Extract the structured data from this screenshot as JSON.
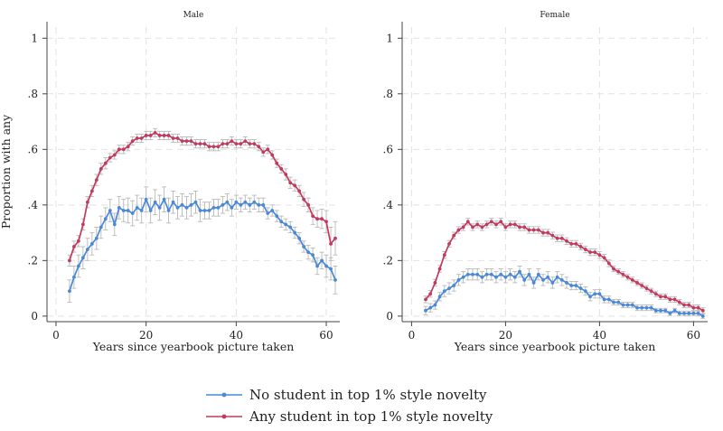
{
  "chart_data": {
    "type": "line",
    "ylabel": "Proportion with any",
    "xlabel": "Years since yearbook picture taken",
    "x_ticks": [
      0,
      20,
      40,
      60
    ],
    "y_ticks": [
      0,
      0.2,
      0.4,
      0.6,
      0.8,
      1
    ],
    "y_tick_labels": [
      "0",
      ".2",
      ".4",
      ".6",
      ".8",
      "1"
    ],
    "xlim": [
      -2,
      63
    ],
    "ylim": [
      -0.02,
      1.04
    ],
    "grid": true,
    "legend_position": "bottom",
    "error_bars": true,
    "series_styles": [
      {
        "name": "No student in top 1% style novelty",
        "color": "#4a88d8"
      },
      {
        "name": "Any student in top 1% style novelty",
        "color": "#c23a5e"
      }
    ],
    "panels": [
      {
        "title": "Male",
        "x": [
          3,
          4,
          5,
          6,
          7,
          8,
          9,
          10,
          11,
          12,
          13,
          14,
          15,
          16,
          17,
          18,
          19,
          20,
          21,
          22,
          23,
          24,
          25,
          26,
          27,
          28,
          29,
          30,
          31,
          32,
          33,
          34,
          35,
          36,
          37,
          38,
          39,
          40,
          41,
          42,
          43,
          44,
          45,
          46,
          47,
          48,
          49,
          50,
          51,
          52,
          53,
          54,
          55,
          56,
          57,
          58,
          59,
          60,
          61,
          62
        ],
        "series": [
          {
            "name": "No student in top 1% style novelty",
            "values": [
              0.09,
              0.14,
              0.18,
              0.21,
              0.24,
              0.26,
              0.28,
              0.32,
              0.35,
              0.38,
              0.33,
              0.39,
              0.38,
              0.38,
              0.37,
              0.39,
              0.38,
              0.42,
              0.38,
              0.41,
              0.39,
              0.42,
              0.38,
              0.41,
              0.39,
              0.4,
              0.39,
              0.4,
              0.41,
              0.38,
              0.38,
              0.38,
              0.39,
              0.39,
              0.4,
              0.41,
              0.39,
              0.41,
              0.4,
              0.41,
              0.4,
              0.41,
              0.4,
              0.4,
              0.37,
              0.38,
              0.36,
              0.34,
              0.33,
              0.32,
              0.3,
              0.28,
              0.25,
              0.23,
              0.22,
              0.18,
              0.2,
              0.18,
              0.17,
              0.13
            ],
            "errors": [
              0.04,
              0.04,
              0.04,
              0.04,
              0.04,
              0.04,
              0.04,
              0.04,
              0.04,
              0.04,
              0.04,
              0.04,
              0.04,
              0.045,
              0.045,
              0.045,
              0.045,
              0.045,
              0.045,
              0.045,
              0.045,
              0.045,
              0.045,
              0.04,
              0.04,
              0.04,
              0.04,
              0.04,
              0.04,
              0.04,
              0.03,
              0.03,
              0.03,
              0.03,
              0.03,
              0.03,
              0.03,
              0.025,
              0.025,
              0.025,
              0.025,
              0.025,
              0.025,
              0.025,
              0.02,
              0.02,
              0.02,
              0.02,
              0.02,
              0.02,
              0.02,
              0.02,
              0.02,
              0.025,
              0.025,
              0.03,
              0.03,
              0.04,
              0.04,
              0.05
            ]
          },
          {
            "name": "Any student in top 1% style novelty",
            "values": [
              0.2,
              0.25,
              0.27,
              0.33,
              0.41,
              0.45,
              0.49,
              0.53,
              0.55,
              0.57,
              0.58,
              0.6,
              0.6,
              0.61,
              0.63,
              0.64,
              0.64,
              0.65,
              0.65,
              0.66,
              0.65,
              0.65,
              0.65,
              0.64,
              0.64,
              0.63,
              0.63,
              0.63,
              0.62,
              0.62,
              0.62,
              0.61,
              0.61,
              0.61,
              0.62,
              0.62,
              0.63,
              0.62,
              0.62,
              0.63,
              0.62,
              0.62,
              0.61,
              0.59,
              0.6,
              0.58,
              0.55,
              0.53,
              0.51,
              0.48,
              0.47,
              0.45,
              0.42,
              0.4,
              0.36,
              0.35,
              0.35,
              0.34,
              0.26,
              0.28
            ],
            "errors": [
              0.02,
              0.02,
              0.02,
              0.02,
              0.02,
              0.02,
              0.02,
              0.02,
              0.02,
              0.015,
              0.015,
              0.015,
              0.015,
              0.015,
              0.015,
              0.015,
              0.015,
              0.015,
              0.015,
              0.015,
              0.015,
              0.015,
              0.015,
              0.015,
              0.015,
              0.015,
              0.015,
              0.015,
              0.015,
              0.015,
              0.015,
              0.015,
              0.015,
              0.015,
              0.015,
              0.015,
              0.015,
              0.015,
              0.015,
              0.015,
              0.015,
              0.015,
              0.015,
              0.015,
              0.015,
              0.015,
              0.015,
              0.015,
              0.02,
              0.02,
              0.02,
              0.02,
              0.025,
              0.025,
              0.03,
              0.03,
              0.035,
              0.04,
              0.06,
              0.06
            ]
          }
        ]
      },
      {
        "title": "Female",
        "x": [
          3,
          4,
          5,
          6,
          7,
          8,
          9,
          10,
          11,
          12,
          13,
          14,
          15,
          16,
          17,
          18,
          19,
          20,
          21,
          22,
          23,
          24,
          25,
          26,
          27,
          28,
          29,
          30,
          31,
          32,
          33,
          34,
          35,
          36,
          37,
          38,
          39,
          40,
          41,
          42,
          43,
          44,
          45,
          46,
          47,
          48,
          49,
          50,
          51,
          52,
          53,
          54,
          55,
          56,
          57,
          58,
          59,
          60,
          61,
          62
        ],
        "series": [
          {
            "name": "No student in top 1% style novelty",
            "values": [
              0.02,
              0.03,
              0.04,
              0.07,
              0.09,
              0.1,
              0.11,
              0.13,
              0.14,
              0.15,
              0.15,
              0.15,
              0.14,
              0.15,
              0.15,
              0.14,
              0.15,
              0.14,
              0.15,
              0.14,
              0.16,
              0.13,
              0.15,
              0.12,
              0.15,
              0.13,
              0.14,
              0.12,
              0.14,
              0.13,
              0.12,
              0.11,
              0.11,
              0.1,
              0.09,
              0.07,
              0.08,
              0.08,
              0.06,
              0.06,
              0.05,
              0.05,
              0.04,
              0.04,
              0.04,
              0.03,
              0.03,
              0.03,
              0.03,
              0.02,
              0.02,
              0.02,
              0.01,
              0.02,
              0.01,
              0.01,
              0.01,
              0.01,
              0.01,
              0.0
            ],
            "errors": [
              0.015,
              0.015,
              0.015,
              0.015,
              0.02,
              0.02,
              0.02,
              0.02,
              0.02,
              0.02,
              0.02,
              0.02,
              0.02,
              0.02,
              0.02,
              0.02,
              0.02,
              0.02,
              0.02,
              0.02,
              0.02,
              0.02,
              0.02,
              0.02,
              0.02,
              0.02,
              0.02,
              0.02,
              0.02,
              0.02,
              0.02,
              0.015,
              0.015,
              0.015,
              0.015,
              0.015,
              0.015,
              0.015,
              0.012,
              0.012,
              0.01,
              0.01,
              0.01,
              0.01,
              0.01,
              0.01,
              0.01,
              0.01,
              0.01,
              0.008,
              0.008,
              0.008,
              0.008,
              0.008,
              0.008,
              0.008,
              0.008,
              0.008,
              0.008,
              0.008
            ]
          },
          {
            "name": "Any student in top 1% style novelty",
            "values": [
              0.06,
              0.08,
              0.12,
              0.17,
              0.22,
              0.26,
              0.29,
              0.31,
              0.32,
              0.34,
              0.32,
              0.33,
              0.32,
              0.33,
              0.34,
              0.33,
              0.34,
              0.32,
              0.33,
              0.33,
              0.32,
              0.32,
              0.31,
              0.31,
              0.31,
              0.3,
              0.3,
              0.29,
              0.28,
              0.28,
              0.27,
              0.26,
              0.26,
              0.25,
              0.24,
              0.23,
              0.23,
              0.22,
              0.21,
              0.19,
              0.17,
              0.16,
              0.15,
              0.14,
              0.13,
              0.12,
              0.11,
              0.1,
              0.09,
              0.08,
              0.07,
              0.07,
              0.06,
              0.06,
              0.05,
              0.04,
              0.04,
              0.03,
              0.03,
              0.02
            ],
            "errors": [
              0.012,
              0.012,
              0.012,
              0.012,
              0.012,
              0.012,
              0.012,
              0.012,
              0.012,
              0.012,
              0.012,
              0.012,
              0.012,
              0.012,
              0.012,
              0.012,
              0.012,
              0.012,
              0.012,
              0.012,
              0.012,
              0.012,
              0.012,
              0.012,
              0.012,
              0.012,
              0.012,
              0.012,
              0.012,
              0.012,
              0.012,
              0.012,
              0.012,
              0.012,
              0.012,
              0.012,
              0.012,
              0.012,
              0.012,
              0.012,
              0.01,
              0.01,
              0.01,
              0.01,
              0.01,
              0.01,
              0.01,
              0.01,
              0.01,
              0.01,
              0.01,
              0.01,
              0.01,
              0.01,
              0.01,
              0.01,
              0.01,
              0.01,
              0.01,
              0.01
            ]
          }
        ]
      }
    ]
  }
}
